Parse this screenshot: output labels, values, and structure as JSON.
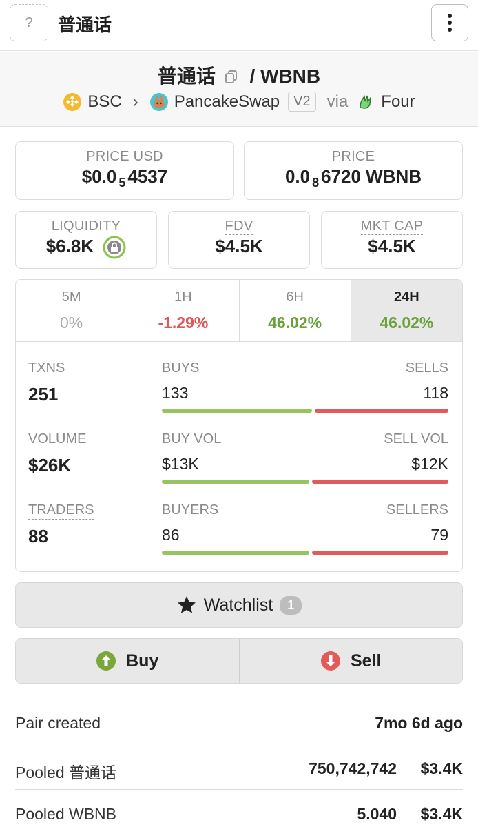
{
  "header": {
    "thumb_placeholder": "?",
    "title": "普通话"
  },
  "pair": {
    "base": "普通话",
    "separator": "/",
    "quote": "WBNB",
    "chain": "BSC",
    "dex": "PancakeSwap",
    "version": "V2",
    "via_label": "via",
    "launchpad": "Four"
  },
  "prices": {
    "usd_label": "PRICE USD",
    "usd_prefix": "$0.0",
    "usd_zeros": "5",
    "usd_digits": "4537",
    "native_label": "PRICE",
    "native_prefix": "0.0",
    "native_zeros": "8",
    "native_digits": "6720 WBNB"
  },
  "metrics": {
    "liquidity_label": "LIQUIDITY",
    "liquidity_value": "$6.8K",
    "fdv_label": "FDV",
    "fdv_value": "$4.5K",
    "mcap_label": "MKT CAP",
    "mcap_value": "$4.5K"
  },
  "timeframes": [
    {
      "label": "5M",
      "change": "0%"
    },
    {
      "label": "1H",
      "change": "-1.29%"
    },
    {
      "label": "6H",
      "change": "46.02%"
    },
    {
      "label": "24H",
      "change": "46.02%"
    }
  ],
  "active_timeframe": "24H",
  "activity": {
    "txns_label": "TXNS",
    "txns_value": "251",
    "volume_label": "VOLUME",
    "volume_value": "$26K",
    "traders_label": "TRADERS",
    "traders_value": "88",
    "buys_label": "BUYS",
    "buys_value": "133",
    "sells_label": "SELLS",
    "sells_value": "118",
    "buy_share": 0.53,
    "buyvol_label": "BUY VOL",
    "buyvol_value": "$13K",
    "sellvol_label": "SELL VOL",
    "sellvol_value": "$12K",
    "buyvol_share": 0.52,
    "buyers_label": "BUYERS",
    "buyers_value": "86",
    "sellers_label": "SELLERS",
    "sellers_value": "79",
    "buyers_share": 0.52
  },
  "colors": {
    "positive": "#6aa13d",
    "negative": "#e05656",
    "buy_bar": "#97c460",
    "sell_bar": "#e25a5a"
  },
  "watchlist": {
    "label": "Watchlist",
    "count": "1"
  },
  "trade": {
    "buy_label": "Buy",
    "sell_label": "Sell"
  },
  "info": {
    "pair_created_label": "Pair created",
    "pair_created_value": "7mo 6d ago",
    "pooled_base_label": "Pooled 普通话",
    "pooled_base_amount": "750,742,742",
    "pooled_base_usd": "$3.4K",
    "pooled_quote_label": "Pooled WBNB",
    "pooled_quote_amount": "5.040",
    "pooled_quote_usd": "$3.4K"
  }
}
